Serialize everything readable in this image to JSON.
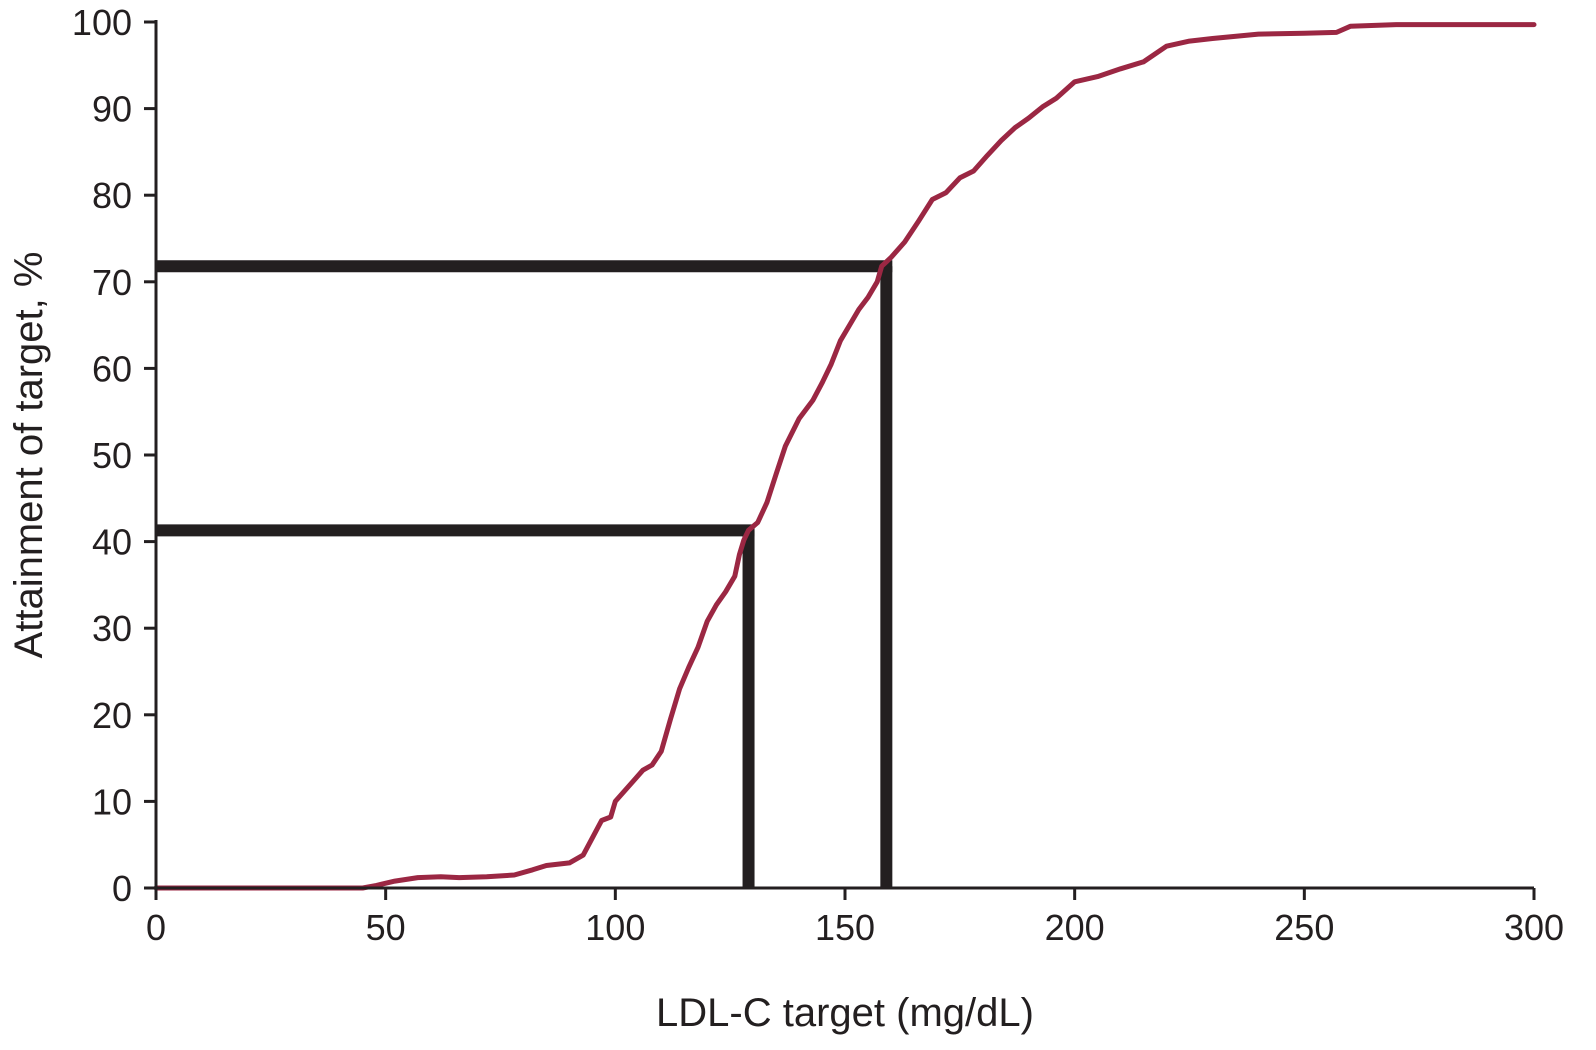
{
  "chart_data": {
    "type": "line",
    "title": "",
    "xlabel": "LDL-C target (mg/dL)",
    "ylabel": "Attainment of target, %",
    "xlim": [
      0,
      300
    ],
    "ylim": [
      0,
      100
    ],
    "x_ticks": [
      0,
      50,
      100,
      150,
      200,
      250,
      300
    ],
    "y_ticks": [
      0,
      10,
      20,
      30,
      40,
      50,
      60,
      70,
      80,
      90,
      100
    ],
    "grid": false,
    "legend": "none",
    "series": [
      {
        "color": "#9b2743",
        "points": [
          [
            0,
            0
          ],
          [
            20,
            0
          ],
          [
            45,
            0
          ],
          [
            48,
            0.3
          ],
          [
            52,
            0.8
          ],
          [
            57,
            1.2
          ],
          [
            62,
            1.3
          ],
          [
            66,
            1.2
          ],
          [
            72,
            1.3
          ],
          [
            78,
            1.5
          ],
          [
            82,
            2.1
          ],
          [
            85,
            2.6
          ],
          [
            90,
            2.9
          ],
          [
            93,
            3.8
          ],
          [
            95,
            5.8
          ],
          [
            97,
            7.8
          ],
          [
            99,
            8.2
          ],
          [
            100,
            10.0
          ],
          [
            102,
            11.2
          ],
          [
            104,
            12.4
          ],
          [
            106,
            13.6
          ],
          [
            108,
            14.2
          ],
          [
            110,
            15.8
          ],
          [
            112,
            19.5
          ],
          [
            114,
            23.0
          ],
          [
            116,
            25.5
          ],
          [
            118,
            27.8
          ],
          [
            120,
            30.8
          ],
          [
            122,
            32.7
          ],
          [
            124,
            34.2
          ],
          [
            126,
            36.0
          ],
          [
            127,
            38.5
          ],
          [
            128,
            40.2
          ],
          [
            129,
            41.3
          ],
          [
            131,
            42.2
          ],
          [
            133,
            44.5
          ],
          [
            135,
            47.8
          ],
          [
            137,
            51.0
          ],
          [
            140,
            54.2
          ],
          [
            143,
            56.3
          ],
          [
            145,
            58.3
          ],
          [
            147,
            60.5
          ],
          [
            149,
            63.2
          ],
          [
            151,
            65.0
          ],
          [
            153,
            66.8
          ],
          [
            155,
            68.2
          ],
          [
            157,
            70.0
          ],
          [
            158,
            71.8
          ],
          [
            160,
            72.8
          ],
          [
            163,
            74.6
          ],
          [
            166,
            77.0
          ],
          [
            169,
            79.5
          ],
          [
            172,
            80.3
          ],
          [
            175,
            82.0
          ],
          [
            178,
            82.8
          ],
          [
            181,
            84.6
          ],
          [
            184,
            86.3
          ],
          [
            187,
            87.8
          ],
          [
            190,
            88.9
          ],
          [
            193,
            90.2
          ],
          [
            196,
            91.2
          ],
          [
            200,
            93.1
          ],
          [
            205,
            93.7
          ],
          [
            210,
            94.6
          ],
          [
            215,
            95.4
          ],
          [
            220,
            97.2
          ],
          [
            225,
            97.8
          ],
          [
            230,
            98.1
          ],
          [
            240,
            98.6
          ],
          [
            250,
            98.7
          ],
          [
            257,
            98.8
          ],
          [
            260,
            99.5
          ],
          [
            270,
            99.7
          ],
          [
            285,
            99.7
          ],
          [
            300,
            99.7
          ]
        ]
      }
    ],
    "reference_lines": [
      {
        "x": 129,
        "y": 41.3
      },
      {
        "x": 159,
        "y": 71.8
      }
    ]
  }
}
